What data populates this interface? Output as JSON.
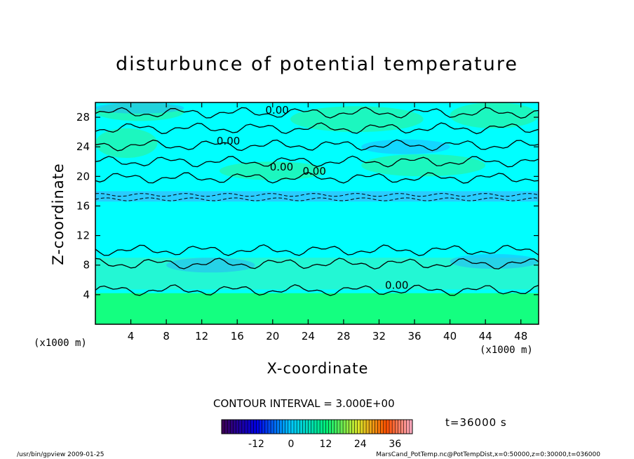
{
  "chart_data": {
    "type": "heatmap",
    "title": "disturbunce of potential temperature",
    "xlabel": "X-coordinate",
    "ylabel": "Z-coordinate",
    "x_unit": "(x1000 m)",
    "z_unit": "(x1000 m)",
    "xlim": [
      0,
      50
    ],
    "ylim": [
      0,
      30
    ],
    "x_ticks": [
      4,
      8,
      12,
      16,
      20,
      24,
      28,
      32,
      36,
      40,
      44,
      48
    ],
    "y_ticks": [
      4,
      8,
      12,
      16,
      20,
      24,
      28
    ],
    "contour_labels": [
      {
        "text": "0.00",
        "x": 20.5,
        "z": 28.5
      },
      {
        "text": "0.00",
        "x": 15.0,
        "z": 24.3
      },
      {
        "text": "0.00",
        "x": 21.0,
        "z": 20.8
      },
      {
        "text": "0.00",
        "x": 24.7,
        "z": 20.2
      },
      {
        "text": "0.00",
        "x": 34.0,
        "z": 4.8
      }
    ],
    "colorbar": {
      "ticks": [
        -12,
        0,
        12,
        24,
        36
      ],
      "range": [
        -24,
        42
      ]
    },
    "contour_interval": "CONTOUR INTERVAL = 3.000E+00",
    "time": "t=36000 s"
  },
  "footer": {
    "left": "/usr/bin/gpview  2009-01-25",
    "right": "MarsCand_PotTemp.nc@PotTempDist,x=0:50000,z=0:30000,t=036000"
  },
  "colors": {
    "background_field": "#00ffff",
    "near_zero_green": "#33f08a",
    "negative_blue": "#2aa5ff",
    "surface_green": "#14ff80"
  }
}
